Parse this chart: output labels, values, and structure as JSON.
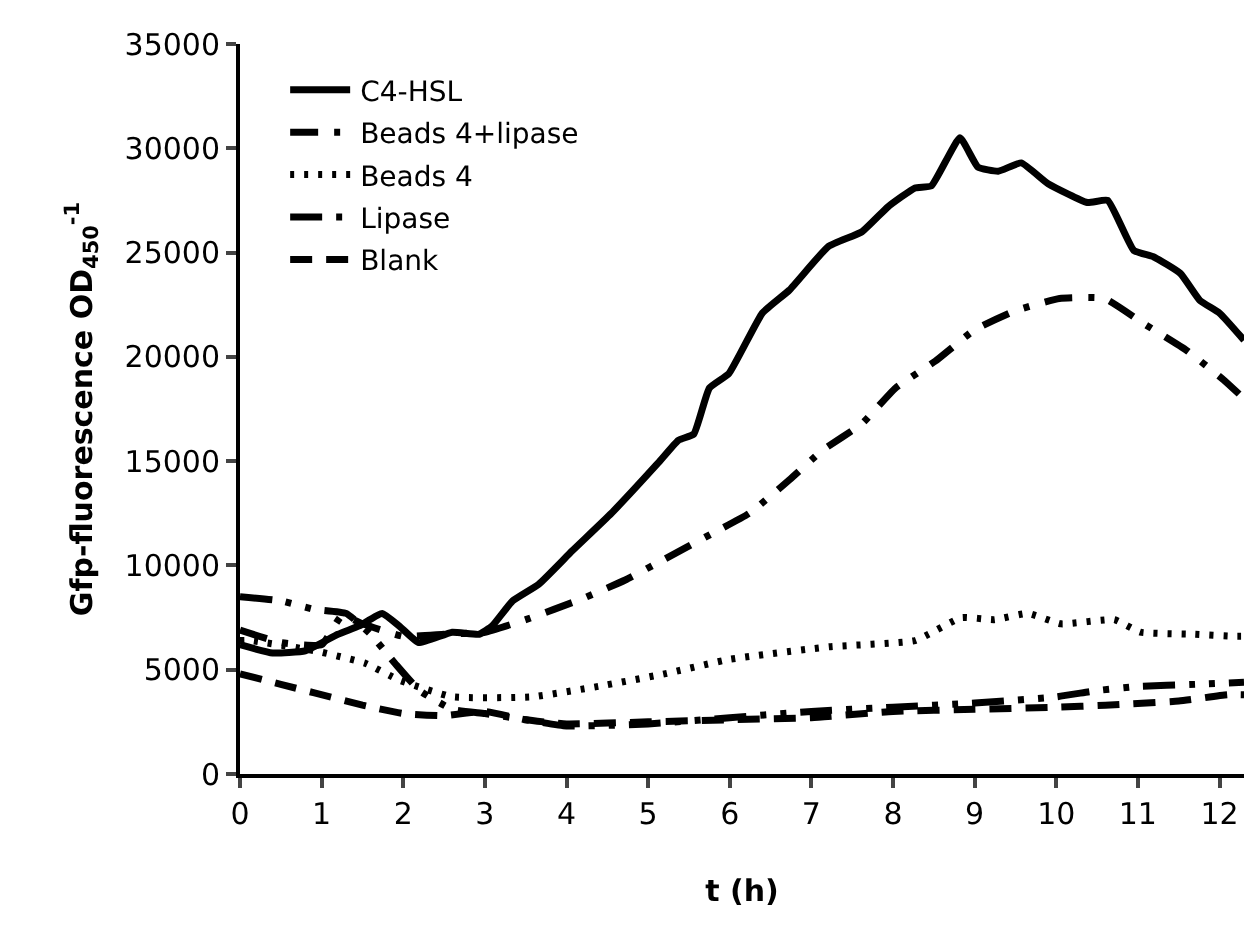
{
  "chart_data": {
    "type": "line",
    "xlabel": "t (h)",
    "ylabel": "Gfp-fluorescence OD$_{450}$$^{-1}$",
    "xlim": [
      0,
      12.3
    ],
    "xticks": [
      0,
      1,
      2,
      3,
      4,
      5,
      6,
      7,
      8,
      9,
      10,
      11,
      12
    ],
    "ylim": [
      0,
      35000
    ],
    "yticks": [
      0,
      5000,
      10000,
      15000,
      20000,
      25000,
      30000,
      35000
    ],
    "legend": "top left",
    "marker": "none",
    "series": [
      {
        "name": "C4-HSL",
        "color": "#000000",
        "line_style": "solid",
        "x": [
          0,
          0.4,
          0.8,
          1.2,
          1.46,
          1.74,
          1.95,
          2.19,
          2.6,
          2.93,
          3.09,
          3.34,
          3.66,
          4.07,
          4.55,
          5.12,
          5.37,
          5.56,
          5.75,
          5.99,
          6.4,
          6.73,
          7.21,
          7.62,
          7.94,
          8.27,
          8.47,
          8.82,
          9.04,
          9.29,
          9.57,
          9.9,
          10.38,
          10.63,
          10.95,
          11.19,
          11.52,
          11.76,
          12.0,
          12.3
        ],
        "values": [
          6200,
          5800,
          5900,
          6700,
          7100,
          7700,
          7100,
          6300,
          6800,
          6700,
          7100,
          8300,
          9100,
          10700,
          12500,
          14900,
          16000,
          16300,
          18500,
          19200,
          22100,
          23200,
          25300,
          26000,
          27200,
          28100,
          28200,
          30500,
          29100,
          28900,
          29300,
          28300,
          27400,
          27500,
          25100,
          24800,
          24000,
          22700,
          22100,
          20800
        ]
      },
      {
        "name": "Beads 4+lipase",
        "color": "#000000",
        "line_style": "dashdot",
        "x": [
          0,
          0.5,
          1.0,
          1.25,
          1.5,
          2.0,
          2.5,
          3.0,
          3.5,
          4.19,
          4.72,
          5.2,
          5.77,
          6.24,
          6.73,
          7.13,
          7.62,
          8.03,
          8.52,
          9.0,
          9.49,
          10.04,
          10.59,
          11.07,
          11.6,
          12.05,
          12.3
        ],
        "values": [
          6900,
          6300,
          6200,
          7600,
          7200,
          6600,
          6700,
          6800,
          7400,
          8400,
          9300,
          10300,
          11500,
          12500,
          14100,
          15500,
          16800,
          18500,
          19800,
          21300,
          22200,
          22800,
          22800,
          21600,
          20300,
          18900,
          18000
        ]
      },
      {
        "name": "Beads 4",
        "color": "#000000",
        "line_style": "dotted",
        "x": [
          0,
          0.12,
          0.93,
          1.54,
          1.95,
          2.6,
          3.58,
          4.39,
          5.2,
          6.0,
          7.22,
          8.27,
          8.84,
          9.24,
          9.65,
          10.06,
          10.71,
          11.03,
          11.68,
          12.17,
          12.3
        ],
        "values": [
          6400,
          6400,
          5900,
          5300,
          4500,
          3700,
          3700,
          4200,
          4800,
          5500,
          6100,
          6400,
          7500,
          7400,
          7700,
          7200,
          7400,
          6800,
          6700,
          6600,
          6600
        ]
      },
      {
        "name": "Lipase",
        "color": "#000000",
        "line_style": "dashdotdot",
        "x": [
          0,
          0.5,
          0.9,
          1.3,
          1.6,
          1.9,
          2.2,
          2.6,
          3.0,
          3.5,
          4.0,
          5.0,
          6.0,
          7.0,
          8.0,
          9.0,
          10.0,
          10.5,
          11.0,
          11.7,
          12.3
        ],
        "values": [
          8500,
          8300,
          7900,
          7700,
          6700,
          5300,
          4000,
          3100,
          2900,
          2600,
          2300,
          2400,
          2700,
          3000,
          3200,
          3400,
          3700,
          4000,
          4200,
          4300,
          4400
        ]
      },
      {
        "name": "Blank",
        "color": "#000000",
        "line_style": "dashed",
        "x": [
          0,
          0.5,
          0.9,
          1.5,
          2.0,
          2.5,
          3.0,
          3.5,
          4.0,
          5.0,
          6.0,
          7.0,
          8.0,
          9.0,
          10.0,
          10.6,
          11.5,
          12.1,
          12.3
        ],
        "values": [
          4800,
          4300,
          3900,
          3300,
          2900,
          2800,
          3000,
          2600,
          2400,
          2500,
          2600,
          2700,
          3000,
          3100,
          3200,
          3300,
          3500,
          3800,
          3800
        ]
      }
    ]
  }
}
